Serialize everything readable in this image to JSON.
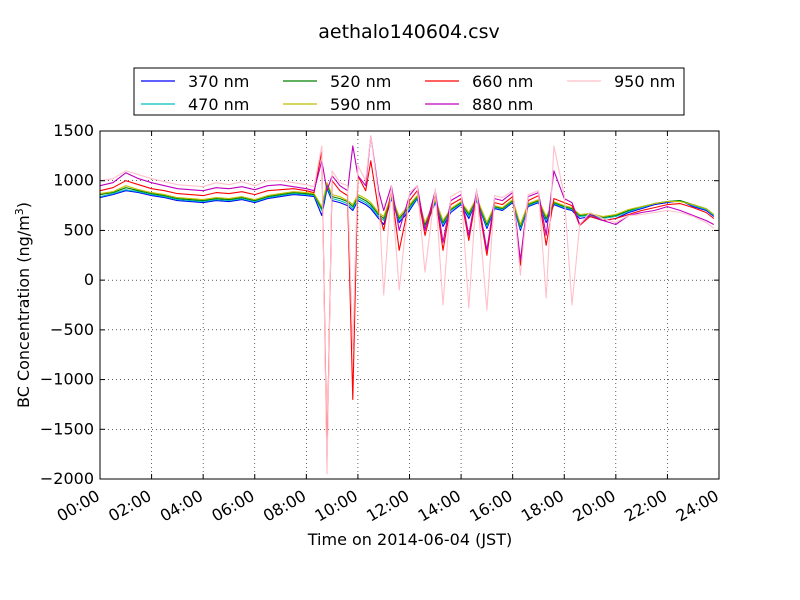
{
  "chart_data": {
    "type": "line",
    "title": "aethalo140604.csv",
    "xlabel": "Time on 2014-06-04 (JST)",
    "ylabel_main": "BC Concentration (ng/m",
    "ylabel_sup": "3",
    "ylabel_close": ")",
    "xlim": [
      0,
      24
    ],
    "ylim": [
      -2000,
      1500
    ],
    "x_unit": "hours",
    "xtick_values": [
      0,
      2,
      4,
      6,
      8,
      10,
      12,
      14,
      16,
      18,
      20,
      22,
      24
    ],
    "xtick_labels": [
      "00:00",
      "02:00",
      "04:00",
      "06:00",
      "08:00",
      "10:00",
      "12:00",
      "14:00",
      "16:00",
      "18:00",
      "20:00",
      "22:00",
      "24:00"
    ],
    "ytick_values": [
      -2000,
      -1500,
      -1000,
      -500,
      0,
      500,
      1000,
      1500
    ],
    "ytick_labels": [
      "−2000",
      "−1500",
      "−1000",
      "−500",
      "0",
      "500",
      "1000",
      "1500"
    ],
    "grid": true,
    "legend_position": "top-center",
    "x": [
      0.0,
      0.5,
      1.0,
      1.5,
      2.0,
      2.5,
      3.0,
      3.5,
      4.0,
      4.5,
      5.0,
      5.5,
      6.0,
      6.5,
      7.0,
      7.5,
      8.0,
      8.3,
      8.6,
      8.8,
      9.0,
      9.3,
      9.6,
      9.8,
      10.0,
      10.3,
      10.5,
      10.8,
      11.0,
      11.3,
      11.6,
      12.0,
      12.3,
      12.6,
      13.0,
      13.3,
      13.6,
      14.0,
      14.3,
      14.6,
      15.0,
      15.3,
      15.6,
      16.0,
      16.3,
      16.6,
      17.0,
      17.3,
      17.6,
      18.0,
      18.3,
      18.6,
      19.0,
      19.5,
      20.0,
      20.5,
      21.0,
      21.5,
      22.0,
      22.5,
      23.0,
      23.5,
      23.8
    ],
    "series": [
      {
        "name": "370 nm",
        "color": "#0000ff",
        "values": [
          830,
          860,
          900,
          880,
          850,
          830,
          800,
          790,
          780,
          800,
          790,
          810,
          780,
          820,
          840,
          860,
          850,
          840,
          650,
          920,
          800,
          780,
          750,
          700,
          800,
          760,
          720,
          620,
          560,
          820,
          580,
          700,
          820,
          520,
          780,
          540,
          680,
          760,
          620,
          800,
          520,
          720,
          700,
          780,
          500,
          740,
          780,
          580,
          760,
          720,
          700,
          620,
          640,
          600,
          620,
          680,
          720,
          760,
          780,
          800,
          740,
          700,
          640
        ]
      },
      {
        "name": "470 nm",
        "color": "#00bfbf",
        "values": [
          840,
          870,
          910,
          890,
          860,
          840,
          810,
          800,
          790,
          810,
          800,
          820,
          790,
          830,
          850,
          870,
          860,
          850,
          700,
          940,
          820,
          800,
          770,
          720,
          820,
          780,
          740,
          640,
          600,
          830,
          600,
          720,
          830,
          540,
          790,
          560,
          700,
          770,
          640,
          810,
          540,
          730,
          710,
          790,
          520,
          750,
          790,
          600,
          770,
          730,
          710,
          640,
          650,
          620,
          640,
          690,
          730,
          770,
          790,
          800,
          750,
          710,
          650
        ]
      },
      {
        "name": "520 nm",
        "color": "#008000",
        "values": [
          860,
          880,
          930,
          900,
          870,
          850,
          820,
          810,
          800,
          820,
          810,
          830,
          800,
          840,
          860,
          880,
          870,
          860,
          720,
          960,
          840,
          820,
          790,
          740,
          840,
          800,
          760,
          660,
          620,
          840,
          620,
          740,
          840,
          560,
          800,
          580,
          710,
          780,
          660,
          820,
          560,
          740,
          720,
          800,
          540,
          760,
          800,
          620,
          780,
          740,
          720,
          650,
          660,
          630,
          650,
          700,
          740,
          770,
          790,
          800,
          760,
          720,
          660
        ]
      },
      {
        "name": "590 nm",
        "color": "#bfbf00",
        "values": [
          870,
          890,
          950,
          910,
          880,
          860,
          830,
          820,
          810,
          830,
          820,
          840,
          810,
          850,
          870,
          890,
          880,
          870,
          740,
          980,
          860,
          840,
          800,
          760,
          860,
          820,
          780,
          680,
          640,
          850,
          640,
          760,
          850,
          580,
          810,
          600,
          720,
          790,
          680,
          830,
          580,
          750,
          730,
          810,
          560,
          770,
          810,
          640,
          790,
          750,
          730,
          660,
          670,
          640,
          660,
          710,
          740,
          770,
          790,
          790,
          760,
          720,
          660
        ]
      },
      {
        "name": "660 nm",
        "color": "#ff0000",
        "values": [
          900,
          930,
          1000,
          960,
          920,
          900,
          870,
          860,
          850,
          880,
          870,
          890,
          860,
          900,
          910,
          920,
          900,
          880,
          1300,
          -1800,
          1000,
          900,
          850,
          -1200,
          1050,
          900,
          1200,
          700,
          500,
          900,
          300,
          800,
          900,
          450,
          860,
          300,
          760,
          820,
          400,
          860,
          250,
          780,
          760,
          840,
          150,
          800,
          850,
          350,
          820,
          780,
          750,
          550,
          640,
          600,
          620,
          660,
          700,
          730,
          760,
          770,
          730,
          680,
          620
        ]
      },
      {
        "name": "880 nm",
        "color": "#bf00bf",
        "values": [
          950,
          980,
          1080,
          1020,
          980,
          950,
          920,
          910,
          900,
          930,
          920,
          940,
          910,
          950,
          960,
          940,
          920,
          900,
          1200,
          900,
          1050,
          950,
          900,
          1350,
          1050,
          950,
          1450,
          900,
          700,
          950,
          500,
          850,
          950,
          500,
          900,
          380,
          800,
          860,
          450,
          900,
          300,
          820,
          800,
          880,
          200,
          840,
          880,
          450,
          1100,
          820,
          780,
          560,
          660,
          600,
          560,
          650,
          680,
          700,
          740,
          700,
          650,
          600,
          560
        ]
      },
      {
        "name": "950 nm",
        "color": "#ffc0cb",
        "values": [
          1000,
          1020,
          1100,
          1060,
          1020,
          990,
          960,
          950,
          940,
          980,
          960,
          990,
          950,
          1000,
          1000,
          980,
          960,
          940,
          1350,
          -1950,
          1100,
          980,
          950,
          -700,
          1150,
          1000,
          1450,
          850,
          -150,
          950,
          -100,
          880,
          950,
          80,
          920,
          -250,
          840,
          900,
          -280,
          920,
          -300,
          850,
          830,
          900,
          50,
          860,
          900,
          -180,
          1350,
          850,
          -250,
          560,
          680,
          620,
          580,
          650,
          660,
          680,
          700,
          680,
          640,
          580,
          520
        ]
      }
    ]
  }
}
